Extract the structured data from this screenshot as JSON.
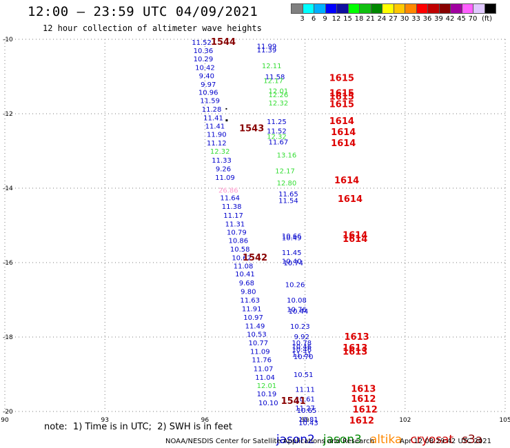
{
  "header": {
    "title": "12:00 – 23:59 UTC 04/09/2021",
    "subtitle": "12 hour collection of altimeter wave heights"
  },
  "colorbar": {
    "colors": [
      "#808080",
      "#00ffff",
      "#00b0ff",
      "#0000ff",
      "#1010a0",
      "#00ff00",
      "#10c010",
      "#008800",
      "#ffff00",
      "#ffc800",
      "#ff8800",
      "#ff0000",
      "#c00000",
      "#880000",
      "#a000a0",
      "#ff60ff",
      "#e0c8ff",
      "#000000"
    ],
    "labels": [
      "3",
      "6",
      "9",
      "12",
      "15",
      "18",
      "21",
      "24",
      "27",
      "30",
      "33",
      "36",
      "39",
      "42",
      "45",
      "70",
      "(ft)"
    ]
  },
  "note": "note:  1) Time is in UTC;  2) SWH is in feet",
  "legend": [
    {
      "name": "jason2",
      "color": "#0000cc"
    },
    {
      "name": "jason3",
      "color": "#008800"
    },
    {
      "name": "altika",
      "color": "#ff8800"
    },
    {
      "name": "cryosat",
      "color": "#cc0000"
    },
    {
      "name": "s3a",
      "color": "#880000"
    }
  ],
  "footer_left": "NOAA/NESDIS Center for Satellite Applications and Research",
  "footer_right": "Apr 12 08:29:42 UTC 2021",
  "chart_data": {
    "type": "scatter",
    "xlim": [
      90,
      105
    ],
    "ylim": [
      -20,
      -10
    ],
    "x_ticks": [
      "90",
      "93",
      "96",
      "99",
      "102",
      "105"
    ],
    "y_ticks": [
      "-10",
      "-12",
      "-14",
      "-16",
      "-18",
      "-20"
    ],
    "grid": true,
    "series": [
      {
        "name": "jason2",
        "color": "#0000cc",
        "points": [
          {
            "x": 95.9,
            "y": -10.07,
            "label": "11.52"
          },
          {
            "x": 95.95,
            "y": -10.3,
            "label": "10.36"
          },
          {
            "x": 95.95,
            "y": -10.52,
            "label": "10.29"
          },
          {
            "x": 96.0,
            "y": -10.75,
            "label": "10.42"
          },
          {
            "x": 96.05,
            "y": -10.97,
            "label": "9.40"
          },
          {
            "x": 96.1,
            "y": -11.2,
            "label": "9.97"
          },
          {
            "x": 96.1,
            "y": -11.42,
            "label": "10.96"
          },
          {
            "x": 96.15,
            "y": -11.64,
            "label": "11.59"
          },
          {
            "x": 96.2,
            "y": -11.87,
            "label": "11.28"
          },
          {
            "x": 96.25,
            "y": -12.1,
            "label": "11.41"
          },
          {
            "x": 96.3,
            "y": -12.32,
            "label": "11.41"
          },
          {
            "x": 96.35,
            "y": -12.55,
            "label": "11.90"
          },
          {
            "x": 96.35,
            "y": -12.78,
            "label": "11.12"
          },
          {
            "x": 96.5,
            "y": -13.24,
            "label": "11.33"
          },
          {
            "x": 96.55,
            "y": -13.47,
            "label": "9.26"
          },
          {
            "x": 96.6,
            "y": -13.7,
            "label": "11.09"
          },
          {
            "x": 96.75,
            "y": -14.25,
            "label": "11.64"
          },
          {
            "x": 96.8,
            "y": -14.48,
            "label": "11.38"
          },
          {
            "x": 96.85,
            "y": -14.72,
            "label": "11.17"
          },
          {
            "x": 96.9,
            "y": -14.95,
            "label": "11.31"
          },
          {
            "x": 96.95,
            "y": -15.18,
            "label": "10.79"
          },
          {
            "x": 97.0,
            "y": -15.4,
            "label": "10.86"
          },
          {
            "x": 97.05,
            "y": -15.63,
            "label": "10.58"
          },
          {
            "x": 97.1,
            "y": -15.86,
            "label": "10.62"
          },
          {
            "x": 97.15,
            "y": -16.08,
            "label": "11.08"
          },
          {
            "x": 97.2,
            "y": -16.3,
            "label": "10.41"
          },
          {
            "x": 97.25,
            "y": -16.54,
            "label": "9.68"
          },
          {
            "x": 97.3,
            "y": -16.77,
            "label": "9.80"
          },
          {
            "x": 97.35,
            "y": -17.0,
            "label": "11.63"
          },
          {
            "x": 97.4,
            "y": -17.23,
            "label": "11.91"
          },
          {
            "x": 97.45,
            "y": -17.46,
            "label": "10.97"
          },
          {
            "x": 97.5,
            "y": -17.69,
            "label": "11.49"
          },
          {
            "x": 97.55,
            "y": -17.92,
            "label": "10.53"
          },
          {
            "x": 97.6,
            "y": -18.15,
            "label": "10.77"
          },
          {
            "x": 97.65,
            "y": -18.38,
            "label": "11.09"
          },
          {
            "x": 97.7,
            "y": -18.6,
            "label": "11.76"
          },
          {
            "x": 97.75,
            "y": -18.84,
            "label": "11.07"
          },
          {
            "x": 97.8,
            "y": -19.07,
            "label": "11.04"
          },
          {
            "x": 97.85,
            "y": -19.52,
            "label": "10.19"
          },
          {
            "x": 97.9,
            "y": -19.76,
            "label": "10.10"
          },
          {
            "x": 97.85,
            "y": -10.18,
            "label": "11.99"
          },
          {
            "x": 97.85,
            "y": -10.28,
            "label": "11.39"
          },
          {
            "x": 98.1,
            "y": -11.0,
            "label": "11.58"
          },
          {
            "x": 98.15,
            "y": -12.2,
            "label": "11.25"
          },
          {
            "x": 98.15,
            "y": -12.45,
            "label": "11.52"
          },
          {
            "x": 98.2,
            "y": -12.75,
            "label": "11.67"
          },
          {
            "x": 98.5,
            "y": -14.15,
            "label": "11.65"
          },
          {
            "x": 98.5,
            "y": -14.32,
            "label": "11.54"
          },
          {
            "x": 98.6,
            "y": -15.28,
            "label": "10.66"
          },
          {
            "x": 98.6,
            "y": -15.32,
            "label": "10.49"
          },
          {
            "x": 98.6,
            "y": -15.72,
            "label": "11.45"
          },
          {
            "x": 98.6,
            "y": -15.95,
            "label": "10.40"
          },
          {
            "x": 98.65,
            "y": -16.0,
            "label": "10.74"
          },
          {
            "x": 98.7,
            "y": -16.58,
            "label": "10.26"
          },
          {
            "x": 98.75,
            "y": -17.0,
            "label": "10.08"
          },
          {
            "x": 98.75,
            "y": -17.25,
            "label": "10.76"
          },
          {
            "x": 98.8,
            "y": -17.3,
            "label": "10.44"
          },
          {
            "x": 98.85,
            "y": -17.7,
            "label": "10.23"
          },
          {
            "x": 98.9,
            "y": -17.98,
            "label": "9.92"
          },
          {
            "x": 98.9,
            "y": -18.15,
            "label": "10.78"
          },
          {
            "x": 98.9,
            "y": -18.25,
            "label": "10.46"
          },
          {
            "x": 98.9,
            "y": -18.32,
            "label": "10.46"
          },
          {
            "x": 98.9,
            "y": -18.45,
            "label": "11.21"
          },
          {
            "x": 98.95,
            "y": -18.52,
            "label": "10.70"
          },
          {
            "x": 98.95,
            "y": -19.0,
            "label": "10.51"
          },
          {
            "x": 99.0,
            "y": -19.4,
            "label": "11.11"
          },
          {
            "x": 99.0,
            "y": -19.66,
            "label": "10.61"
          },
          {
            "x": 99.0,
            "y": -19.9,
            "label": "11.27"
          },
          {
            "x": 99.05,
            "y": -19.96,
            "label": "10.65"
          },
          {
            "x": 99.1,
            "y": -20.2,
            "label": "10.81"
          },
          {
            "x": 99.1,
            "y": -20.3,
            "label": "10.43"
          }
        ]
      },
      {
        "name": "jason3",
        "color": "#33dd33",
        "points": [
          {
            "x": 98.0,
            "y": -10.7,
            "label": "12.11"
          },
          {
            "x": 98.05,
            "y": -11.1,
            "label": "12.17"
          },
          {
            "x": 98.2,
            "y": -11.38,
            "label": "12.01"
          },
          {
            "x": 98.2,
            "y": -11.48,
            "label": "12.26"
          },
          {
            "x": 98.2,
            "y": -11.7,
            "label": "12.32"
          },
          {
            "x": 98.15,
            "y": -12.6,
            "label": "12.32"
          },
          {
            "x": 96.45,
            "y": -13.0,
            "label": "12.32"
          },
          {
            "x": 98.45,
            "y": -13.1,
            "label": "13.16"
          },
          {
            "x": 98.4,
            "y": -13.53,
            "label": "12.17"
          },
          {
            "x": 98.45,
            "y": -13.85,
            "label": "12.80"
          },
          {
            "x": 97.85,
            "y": -19.3,
            "label": "12.01"
          }
        ]
      },
      {
        "name": "altika",
        "color": "#ff99cc",
        "points": [
          {
            "x": 96.7,
            "y": -14.05,
            "label": "26.86"
          }
        ]
      },
      {
        "name": "cryosat",
        "color": "#dd0000",
        "points": [
          {
            "x": 100.1,
            "y": -11.05,
            "label": "1615"
          },
          {
            "x": 100.1,
            "y": -11.45,
            "label": "1615"
          },
          {
            "x": 100.1,
            "y": -11.55,
            "label": "1615"
          },
          {
            "x": 100.1,
            "y": -11.75,
            "label": "1615"
          },
          {
            "x": 100.1,
            "y": -12.2,
            "label": "1614"
          },
          {
            "x": 100.15,
            "y": -12.5,
            "label": "1614"
          },
          {
            "x": 100.15,
            "y": -12.8,
            "label": "1614"
          },
          {
            "x": 100.25,
            "y": -13.8,
            "label": "1614"
          },
          {
            "x": 100.35,
            "y": -14.3,
            "label": "1614"
          },
          {
            "x": 100.5,
            "y": -15.27,
            "label": "1614"
          },
          {
            "x": 100.5,
            "y": -15.37,
            "label": "1614"
          },
          {
            "x": 100.55,
            "y": -18.0,
            "label": "1613"
          },
          {
            "x": 100.5,
            "y": -18.3,
            "label": "1613"
          },
          {
            "x": 100.5,
            "y": -18.4,
            "label": "1613"
          },
          {
            "x": 100.75,
            "y": -19.4,
            "label": "1613"
          },
          {
            "x": 100.75,
            "y": -19.67,
            "label": "1612"
          },
          {
            "x": 100.8,
            "y": -19.95,
            "label": "1612"
          },
          {
            "x": 100.7,
            "y": -20.25,
            "label": "1612"
          }
        ]
      },
      {
        "name": "s3a",
        "color": "#880000",
        "points": [
          {
            "x": 96.55,
            "y": -10.07,
            "label": "1544"
          },
          {
            "x": 97.4,
            "y": -12.4,
            "label": "1543"
          },
          {
            "x": 97.5,
            "y": -15.87,
            "label": "1542"
          },
          {
            "x": 98.65,
            "y": -19.72,
            "label": "1541"
          }
        ]
      }
    ]
  }
}
